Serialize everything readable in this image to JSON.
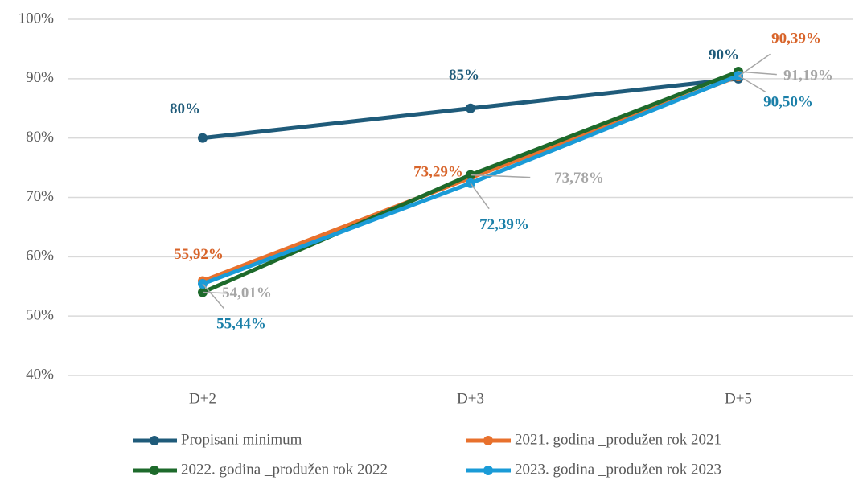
{
  "chart_data": {
    "type": "line",
    "categories": [
      "D+2",
      "D+3",
      "D+5"
    ],
    "series": [
      {
        "name": "Propisani minimum",
        "color": "#1f5b7a",
        "label_color": "#1f5b7a",
        "values": [
          80,
          85,
          90
        ],
        "value_labels": [
          "80%",
          "85%",
          "90%"
        ]
      },
      {
        "name": "2021. godina _produžen rok 2021",
        "color": "#e8712d",
        "label_color": "#d8642a",
        "values": [
          55.92,
          73.29,
          90.39
        ],
        "value_labels": [
          "55,92%",
          "73,29%",
          "90,39%"
        ]
      },
      {
        "name": "2022. godina _produžen rok 2022",
        "color": "#1d6a2b",
        "label_color": "#a6a6a6",
        "values": [
          54.01,
          73.78,
          91.19
        ],
        "value_labels": [
          "54,01%",
          "73,78%",
          "91,19%"
        ]
      },
      {
        "name": "2023. godina _produžen rok 2023",
        "color": "#1a9bd7",
        "label_color": "#1a7fa8",
        "values": [
          55.44,
          72.39,
          90.5
        ],
        "value_labels": [
          "55,44%",
          "72,39%",
          "90,50%"
        ]
      }
    ],
    "ylim": [
      40,
      100
    ],
    "yticks": [
      {
        "value": 40,
        "label": "40%"
      },
      {
        "value": 50,
        "label": "50%"
      },
      {
        "value": 60,
        "label": "60%"
      },
      {
        "value": 70,
        "label": "70%"
      },
      {
        "value": 80,
        "label": "80%"
      },
      {
        "value": 90,
        "label": "90%"
      },
      {
        "value": 100,
        "label": "100%"
      }
    ],
    "grid": true,
    "legend": "bottom"
  }
}
